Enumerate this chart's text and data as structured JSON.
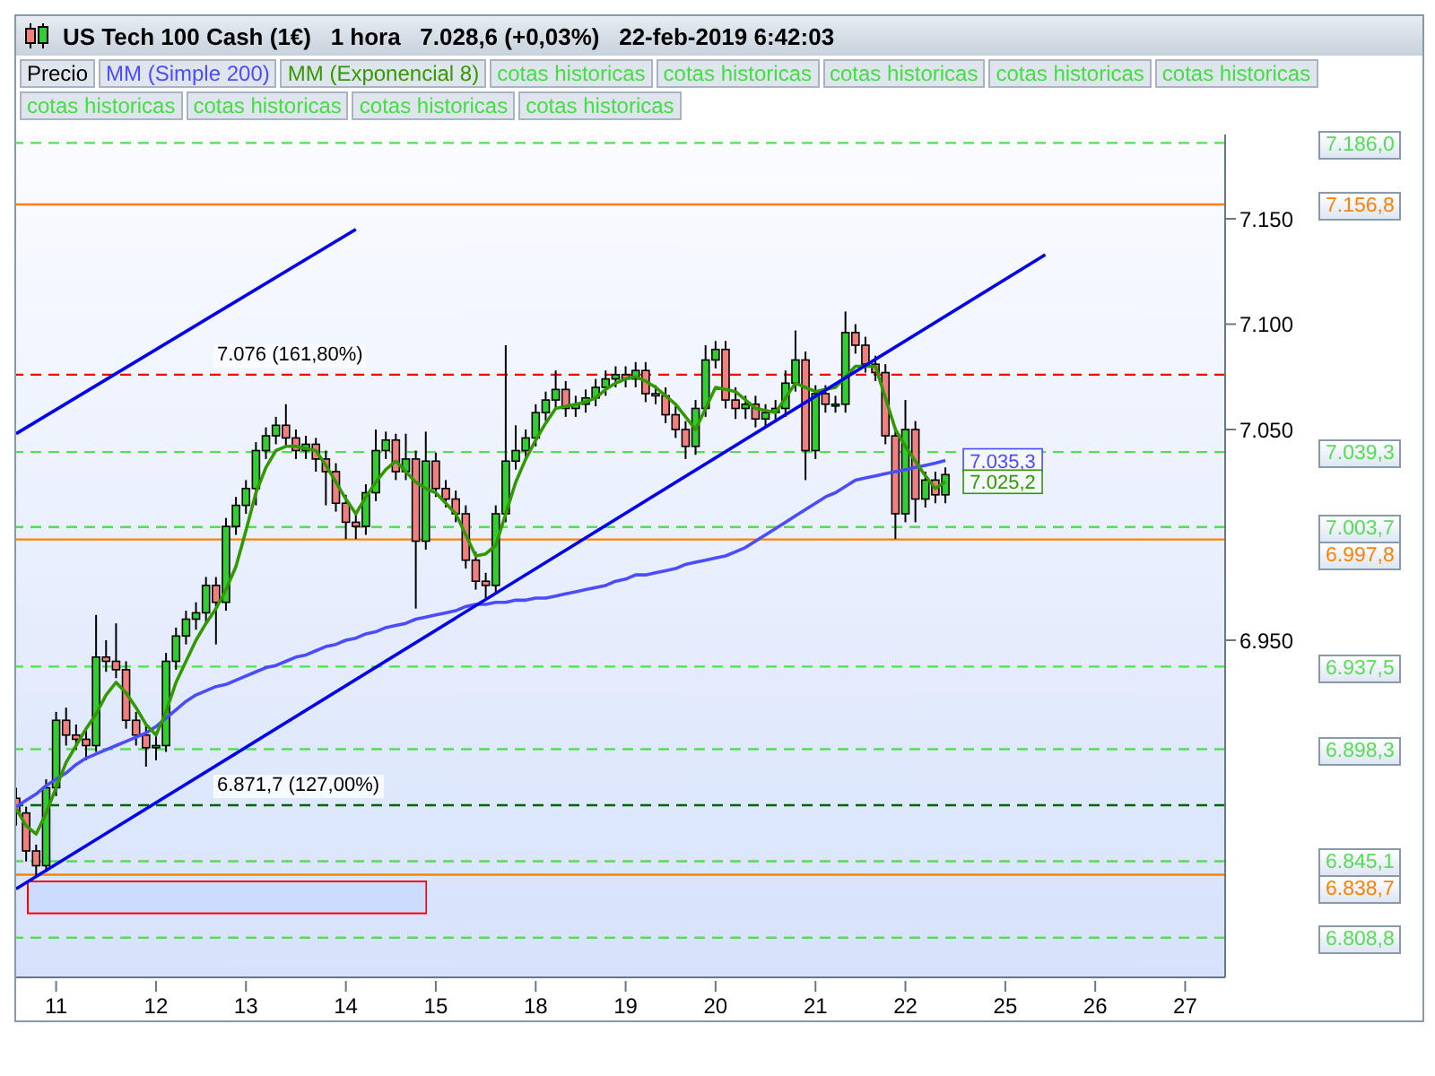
{
  "chart_data": {
    "type": "candlestick",
    "title": "US Tech 100 Cash (1€)   1 hora   7.028,6 (+0,03%)   22-feb-2019 6:42:03",
    "legend": "top left",
    "categories": [
      null,
      null,
      null,
      null,
      "11",
      null,
      null,
      null,
      null,
      null,
      null,
      null,
      null,
      null,
      "12",
      null,
      null,
      null,
      null,
      null,
      null,
      null,
      null,
      "13",
      null,
      null,
      null,
      null,
      null,
      null,
      null,
      null,
      null,
      "14",
      null,
      null,
      null,
      null,
      null,
      null,
      null,
      null,
      "15",
      null,
      null,
      null,
      null,
      null,
      null,
      null,
      null,
      null,
      "18",
      null,
      null,
      null,
      null,
      null,
      null,
      null,
      null,
      "19",
      null,
      null,
      null,
      null,
      null,
      null,
      null,
      null,
      "20",
      null,
      null,
      null,
      null,
      null,
      null,
      null,
      null,
      null,
      "21",
      null,
      null,
      null,
      null,
      null,
      null,
      null,
      null,
      "22",
      null,
      null,
      null,
      null,
      null,
      null,
      null,
      null,
      null,
      "25",
      null,
      null,
      null,
      null,
      null,
      null,
      null,
      null,
      "26",
      null,
      null,
      null,
      null,
      null,
      null,
      null,
      null,
      "27",
      null,
      null,
      null,
      null
    ],
    "ylim": [
      6790,
      7190
    ],
    "yticks": [
      {
        "value": 6950,
        "label": "6.950"
      },
      {
        "value": 7050,
        "label": "7.050"
      },
      {
        "value": 7100,
        "label": "7.100"
      },
      {
        "value": 7150,
        "label": "7.150"
      }
    ],
    "series": [
      {
        "name": "Precio",
        "ohlc": [
          [
            6875,
            6880,
            6862,
            6868
          ],
          [
            6868,
            6871,
            6845,
            6850
          ],
          [
            6850,
            6853,
            6838,
            6843
          ],
          [
            6843,
            6884,
            6840,
            6880
          ],
          [
            6880,
            6916,
            6876,
            6912
          ],
          [
            6912,
            6918,
            6900,
            6905
          ],
          [
            6905,
            6910,
            6898,
            6903
          ],
          [
            6903,
            6908,
            6893,
            6900
          ],
          [
            6900,
            6962,
            6897,
            6942
          ],
          [
            6942,
            6950,
            6935,
            6940
          ],
          [
            6940,
            6958,
            6932,
            6936
          ],
          [
            6936,
            6940,
            6908,
            6912
          ],
          [
            6912,
            6916,
            6900,
            6905
          ],
          [
            6905,
            6910,
            6890,
            6899
          ],
          [
            6899,
            6905,
            6893,
            6900
          ],
          [
            6900,
            6944,
            6897,
            6940
          ],
          [
            6940,
            6956,
            6936,
            6952
          ],
          [
            6952,
            6964,
            6948,
            6960
          ],
          [
            6960,
            6968,
            6955,
            6963
          ],
          [
            6963,
            6980,
            6958,
            6976
          ],
          [
            6976,
            6980,
            6948,
            6968
          ],
          [
            6968,
            7008,
            6964,
            7004
          ],
          [
            7004,
            7018,
            7000,
            7014
          ],
          [
            7014,
            7026,
            7010,
            7022
          ],
          [
            7022,
            7044,
            7014,
            7040
          ],
          [
            7040,
            7051,
            7036,
            7047
          ],
          [
            7047,
            7056,
            7043,
            7052
          ],
          [
            7052,
            7062,
            7042,
            7046
          ],
          [
            7046,
            7050,
            7036,
            7040
          ],
          [
            7040,
            7047,
            7036,
            7043
          ],
          [
            7043,
            7046,
            7030,
            7036
          ],
          [
            7036,
            7040,
            7014,
            7030
          ],
          [
            7030,
            7034,
            7011,
            7015
          ],
          [
            7015,
            7019,
            6998,
            7006
          ],
          [
            7006,
            7010,
            6998,
            7004
          ],
          [
            7004,
            7024,
            7000,
            7020
          ],
          [
            7020,
            7050,
            7016,
            7040
          ],
          [
            7040,
            7049,
            7036,
            7045
          ],
          [
            7045,
            7048,
            7026,
            7030
          ],
          [
            7030,
            7048,
            7026,
            7036
          ],
          [
            7036,
            7040,
            6965,
            6997
          ],
          [
            6997,
            7049,
            6993,
            7035
          ],
          [
            7035,
            7039,
            7018,
            7022
          ],
          [
            7022,
            7026,
            7013,
            7017
          ],
          [
            7017,
            7021,
            7006,
            7010
          ],
          [
            7010,
            7014,
            6984,
            6988
          ],
          [
            6988,
            6992,
            6974,
            6978
          ],
          [
            6978,
            6982,
            6970,
            6976
          ],
          [
            6976,
            7014,
            6972,
            7010
          ],
          [
            7010,
            7090,
            7006,
            7035
          ],
          [
            7035,
            7052,
            7031,
            7040
          ],
          [
            7040,
            7050,
            7036,
            7046
          ],
          [
            7046,
            7062,
            7042,
            7058
          ],
          [
            7058,
            7068,
            7054,
            7064
          ],
          [
            7064,
            7078,
            7060,
            7069
          ],
          [
            7069,
            7073,
            7056,
            7060
          ],
          [
            7060,
            7066,
            7056,
            7062
          ],
          [
            7062,
            7069,
            7058,
            7065
          ],
          [
            7065,
            7074,
            7061,
            7070
          ],
          [
            7070,
            7078,
            7066,
            7074
          ],
          [
            7074,
            7080,
            7070,
            7076
          ],
          [
            7076,
            7080,
            7070,
            7074
          ],
          [
            7074,
            7082,
            7070,
            7078
          ],
          [
            7078,
            7082,
            7063,
            7067
          ],
          [
            7067,
            7071,
            7062,
            7066
          ],
          [
            7066,
            7070,
            7053,
            7057
          ],
          [
            7057,
            7061,
            7046,
            7050
          ],
          [
            7050,
            7054,
            7036,
            7042
          ],
          [
            7042,
            7064,
            7038,
            7060
          ],
          [
            7060,
            7090,
            7056,
            7083
          ],
          [
            7083,
            7092,
            7079,
            7088
          ],
          [
            7088,
            7092,
            7060,
            7064
          ],
          [
            7064,
            7070,
            7055,
            7060
          ],
          [
            7060,
            7066,
            7055,
            7062
          ],
          [
            7062,
            7066,
            7051,
            7055
          ],
          [
            7055,
            7062,
            7051,
            7058
          ],
          [
            7058,
            7064,
            7054,
            7060
          ],
          [
            7060,
            7078,
            7056,
            7072
          ],
          [
            7072,
            7097,
            7068,
            7083
          ],
          [
            7083,
            7087,
            7026,
            7040
          ],
          [
            7040,
            7071,
            7036,
            7067
          ],
          [
            7067,
            7071,
            7058,
            7062
          ],
          [
            7062,
            7066,
            7058,
            7062
          ],
          [
            7062,
            7106,
            7058,
            7096
          ],
          [
            7096,
            7100,
            7086,
            7090
          ],
          [
            7090,
            7094,
            7077,
            7081
          ],
          [
            7081,
            7085,
            7073,
            7077
          ],
          [
            7077,
            7081,
            7043,
            7047
          ],
          [
            7047,
            7051,
            6998,
            7010
          ],
          [
            7010,
            7064,
            7006,
            7050
          ],
          [
            7050,
            7054,
            7006,
            7017
          ],
          [
            7017,
            7030,
            7013,
            7026
          ],
          [
            7026,
            7030,
            7015,
            7019
          ],
          [
            7019,
            7032,
            7015,
            7028.6
          ],
          null,
          null,
          null,
          null,
          null,
          null,
          null,
          null,
          null,
          null,
          null,
          null,
          null,
          null,
          null,
          null,
          null,
          null,
          null,
          null,
          null,
          null,
          null,
          null,
          null,
          null,
          null,
          null
        ],
        "colors": [
          "#f08080",
          "#f08080",
          "#f08080",
          "#33cc33",
          "#33cc33",
          "#f08080",
          "#f08080",
          "#f08080",
          "#33cc33",
          "#f08080",
          "#f08080",
          "#f08080",
          "#f08080",
          "#f08080",
          "#33cc33",
          "#33cc33",
          "#33cc33",
          "#33cc33",
          "#33cc33",
          "#33cc33",
          "#f08080",
          "#33cc33",
          "#33cc33",
          "#33cc33",
          "#33cc33",
          "#33cc33",
          "#33cc33",
          "#f08080",
          "#f08080",
          "#33cc33",
          "#f08080",
          "#f08080",
          "#f08080",
          "#f08080",
          "#f08080",
          "#33cc33",
          "#33cc33",
          "#33cc33",
          "#f08080",
          "#33cc33",
          "#f08080",
          "#33cc33",
          "#f08080",
          "#f08080",
          "#f08080",
          "#f08080",
          "#f08080",
          "#f08080",
          "#33cc33",
          "#33cc33",
          "#33cc33",
          "#33cc33",
          "#33cc33",
          "#33cc33",
          "#33cc33",
          "#f08080",
          "#33cc33",
          "#33cc33",
          "#33cc33",
          "#33cc33",
          "#33cc33",
          "#f08080",
          "#33cc33",
          "#f08080",
          "#f08080",
          "#f08080",
          "#f08080",
          "#f08080",
          "#33cc33",
          "#33cc33",
          "#33cc33",
          "#f08080",
          "#f08080",
          "#33cc33",
          "#f08080",
          "#33cc33",
          "#33cc33",
          "#33cc33",
          "#33cc33",
          "#f08080",
          "#33cc33",
          "#f08080",
          "#33cc33",
          "#33cc33",
          "#f08080",
          "#f08080",
          "#f08080",
          "#f08080",
          "#f08080",
          "#33cc33",
          "#f08080",
          "#33cc33",
          "#f08080",
          "#33cc33",
          null,
          null,
          null,
          null,
          null,
          null,
          null,
          null,
          null,
          null,
          null,
          null,
          null,
          null,
          null,
          null,
          null,
          null,
          null,
          null,
          null,
          null,
          null,
          null,
          null,
          null,
          null,
          null
        ]
      },
      {
        "name": "MM (Simple 200)",
        "type": "line",
        "color": "#4c4cff",
        "values": [
          6871,
          6874,
          6877,
          6881,
          6884,
          6887,
          6891,
          6894,
          6896,
          6898,
          6900,
          6902,
          6904,
          6906,
          6909,
          6913,
          6917,
          6921,
          6924,
          6926,
          6928,
          6929,
          6931,
          6933,
          6935,
          6937,
          6938,
          6940,
          6942,
          6943,
          6945,
          6947,
          6948,
          6950,
          6951,
          6953,
          6954,
          6956,
          6957,
          6958,
          6960,
          6961,
          6962,
          6963,
          6964,
          6966,
          6967,
          6967,
          6968,
          6968,
          6969,
          6969,
          6970,
          6970,
          6971,
          6972,
          6973,
          6974,
          6975,
          6976,
          6978,
          6979,
          6981,
          6981,
          6982,
          6983,
          6984,
          6986,
          6987,
          6988,
          6989,
          6990,
          6992,
          6994,
          6997,
          7000,
          7003,
          7006,
          7009,
          7012,
          7015,
          7018,
          7020,
          7023,
          7026,
          7027,
          7028,
          7029,
          7030,
          7031,
          7032,
          7033,
          7034,
          7035.3,
          null,
          null,
          null,
          null,
          null,
          null,
          null,
          null,
          null,
          null,
          null,
          null,
          null,
          null,
          null,
          null,
          null,
          null,
          null,
          null,
          null,
          null,
          null,
          null,
          null,
          null,
          null,
          null
        ],
        "value_labels": [
          null,
          null,
          null,
          null,
          null,
          null,
          null,
          null,
          null,
          null,
          null,
          null,
          null,
          null,
          null,
          null,
          null,
          null,
          null,
          null,
          null,
          null,
          null,
          null,
          null,
          null,
          null,
          null,
          null,
          null,
          null,
          null,
          null,
          null,
          null,
          null,
          null,
          null,
          null,
          null,
          null,
          null,
          null,
          null,
          null,
          null,
          null,
          null,
          null,
          null,
          null,
          null,
          null,
          null,
          null,
          null,
          null,
          null,
          null,
          null,
          null,
          null,
          null,
          null,
          null,
          null,
          null,
          null,
          null,
          null,
          null,
          null,
          null,
          null,
          null,
          null,
          null,
          null,
          null,
          null,
          null,
          null,
          null,
          null,
          null,
          null,
          null,
          null,
          null,
          null,
          null,
          null,
          null,
          "7.035,3",
          null,
          null,
          null,
          null,
          null,
          null,
          null,
          null,
          null,
          null,
          null,
          null,
          null,
          null,
          null,
          null,
          null,
          null,
          null,
          null,
          null,
          null,
          null,
          null,
          null,
          null,
          null,
          null
        ]
      },
      {
        "name": "MM (Exponencial 8)",
        "type": "line",
        "color": "#339900",
        "values": [
          6870,
          6862,
          6858,
          6868,
          6880,
          6892,
          6900,
          6908,
          6915,
          6924,
          6930,
          6925,
          6918,
          6910,
          6905,
          6916,
          6930,
          6940,
          6950,
          6958,
          6965,
          6974,
          6985,
          7002,
          7020,
          7032,
          7040,
          7042,
          7042,
          7041,
          7040,
          7033,
          7025,
          7017,
          7010,
          7018,
          7025,
          7031,
          7035,
          7030,
          7025,
          7022,
          7020,
          7015,
          7010,
          7000,
          6990,
          6991,
          6995,
          7010,
          7025,
          7036,
          7045,
          7053,
          7060,
          7061,
          7062,
          7063,
          7065,
          7069,
          7072,
          7074,
          7075,
          7073,
          7070,
          7066,
          7062,
          7056,
          7050,
          7060,
          7070,
          7069,
          7068,
          7064,
          7060,
          7059,
          7058,
          7065,
          7072,
          7070,
          7068,
          7069,
          7070,
          7075,
          7080,
          7080,
          7080,
          7065,
          7050,
          7042,
          7035,
          7028,
          7022,
          7025.2,
          null,
          null,
          null,
          null,
          null,
          null,
          null,
          null,
          null,
          null,
          null,
          null,
          null,
          null,
          null,
          null,
          null,
          null,
          null,
          null,
          null,
          null,
          null,
          null,
          null,
          null,
          null,
          null
        ],
        "value_labels": [
          null,
          null,
          null,
          null,
          null,
          null,
          null,
          null,
          null,
          null,
          null,
          null,
          null,
          null,
          null,
          null,
          null,
          null,
          null,
          null,
          null,
          null,
          null,
          null,
          null,
          null,
          null,
          null,
          null,
          null,
          null,
          null,
          null,
          null,
          null,
          null,
          null,
          null,
          null,
          null,
          null,
          null,
          null,
          null,
          null,
          null,
          null,
          null,
          null,
          null,
          null,
          null,
          null,
          null,
          null,
          null,
          null,
          null,
          null,
          null,
          null,
          null,
          null,
          null,
          null,
          null,
          null,
          null,
          null,
          null,
          null,
          null,
          null,
          null,
          null,
          null,
          null,
          null,
          null,
          null,
          null,
          null,
          null,
          null,
          null,
          null,
          null,
          null,
          null,
          null,
          null,
          null,
          null,
          "7.025,2",
          null,
          null,
          null,
          null,
          null,
          null,
          null,
          null,
          null,
          null,
          null,
          null,
          null,
          null,
          null,
          null,
          null,
          null,
          null,
          null,
          null,
          null,
          null,
          null,
          null,
          null,
          null,
          null
        ]
      },
      {
        "type": "line",
        "color": "#0000ee",
        "values": [
          7048,
          null,
          null,
          null,
          null,
          null,
          null,
          null,
          null,
          null,
          null,
          null,
          null,
          null,
          null,
          null,
          null,
          null,
          null,
          null,
          null,
          null,
          null,
          null,
          null,
          null,
          null,
          null,
          null,
          null,
          null,
          null,
          null,
          null,
          7145,
          null,
          null,
          null,
          null,
          null,
          null,
          null,
          null,
          null,
          null,
          null,
          null,
          null,
          null,
          null,
          null,
          null,
          null,
          null,
          null,
          null,
          null,
          null,
          null,
          null,
          null,
          null,
          null,
          null,
          null,
          null,
          null,
          null,
          null,
          null,
          null,
          null,
          null,
          null,
          null,
          null,
          null,
          null,
          null,
          null,
          null,
          null,
          null,
          null,
          null,
          null,
          null,
          null,
          null,
          null,
          null,
          null,
          null,
          null,
          null,
          null,
          null,
          null,
          null,
          null,
          null,
          null,
          null,
          null,
          null,
          null,
          null,
          null,
          null,
          null,
          null,
          null,
          null,
          null,
          null,
          null,
          null,
          null,
          null,
          null,
          null,
          null
        ]
      },
      {
        "type": "line",
        "color": "#0000ee",
        "values": [
          6832,
          null,
          null,
          null,
          null,
          null,
          null,
          null,
          null,
          null,
          null,
          null,
          null,
          null,
          null,
          null,
          null,
          null,
          null,
          null,
          null,
          null,
          null,
          null,
          null,
          null,
          null,
          null,
          null,
          null,
          null,
          null,
          null,
          null,
          null,
          null,
          null,
          null,
          null,
          null,
          null,
          null,
          null,
          null,
          null,
          null,
          null,
          null,
          null,
          null,
          null,
          null,
          null,
          null,
          null,
          null,
          null,
          null,
          null,
          null,
          null,
          null,
          null,
          null,
          null,
          null,
          null,
          null,
          null,
          null,
          null,
          null,
          null,
          null,
          null,
          null,
          null,
          null,
          null,
          null,
          null,
          null,
          null,
          null,
          null,
          null,
          null,
          null,
          null,
          null,
          null,
          null,
          null,
          null,
          null,
          null,
          null,
          null,
          null,
          null,
          null,
          null,
          null,
          7133,
          null,
          null,
          null,
          null,
          null,
          null,
          null,
          null,
          null,
          null,
          null,
          null,
          null,
          null,
          null,
          null,
          null,
          null
        ]
      }
    ],
    "ref_lines": [
      {
        "axis": "y",
        "value": 7186,
        "label": "7.186,0",
        "color": "#55dd55",
        "line_style": "dashed"
      },
      {
        "axis": "y",
        "value": 7156.8,
        "label": "7.156,8",
        "color": "#ff8000",
        "line_style": "solid"
      },
      {
        "axis": "y",
        "value": 7076,
        "color": "#ff0000",
        "line_style": "dashed"
      },
      {
        "axis": "y",
        "value": 7039.3,
        "label": "7.039,3",
        "color": "#55dd55",
        "line_style": "dashed"
      },
      {
        "axis": "y",
        "value": 7003.7,
        "label": "7.003,7",
        "color": "#55dd55",
        "line_style": "dashed"
      },
      {
        "axis": "y",
        "value": 6997.8,
        "label": "6.997,8",
        "color": "#ff8000",
        "line_style": "solid"
      },
      {
        "axis": "y",
        "value": 6937.5,
        "label": "6.937,5",
        "color": "#55dd55",
        "line_style": "dashed"
      },
      {
        "axis": "y",
        "value": 6898.3,
        "label": "6.898,3",
        "color": "#55dd55",
        "line_style": "dashed"
      },
      {
        "axis": "y",
        "value": 6871.7,
        "color": "#006600",
        "line_style": "dashed"
      },
      {
        "axis": "y",
        "value": 6845.1,
        "label": "6.845,1",
        "color": "#55dd55",
        "line_style": "dashed"
      },
      {
        "axis": "y",
        "value": 6838.7,
        "label": "6.838,7",
        "color": "#ff8000",
        "line_style": "solid"
      },
      {
        "axis": "y",
        "value": 6808.8,
        "label": "6.808,8",
        "color": "#55dd55",
        "line_style": "dashed"
      }
    ],
    "annotations": [
      "cotas historicas",
      "cotas historicas",
      "cotas historicas",
      "cotas historicas",
      "cotas historicas",
      "cotas historicas",
      "cotas historicas",
      "cotas historicas",
      "cotas historicas",
      {
        "text": "7.076 (161,80%)",
        "y": 7076
      },
      {
        "text": "6.871,7 (127,00%)",
        "y": 6871.7
      }
    ]
  }
}
